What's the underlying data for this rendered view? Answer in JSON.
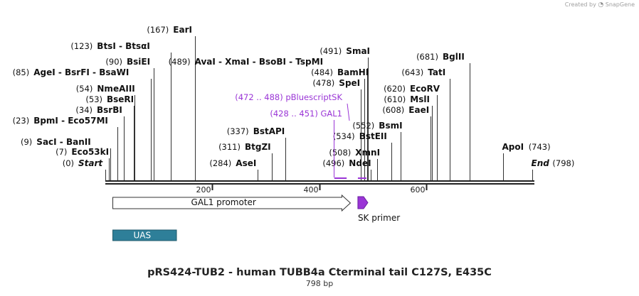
{
  "credit": {
    "prefix": "Created by",
    "brand": "SnapGene",
    "logo_icon": "snapgene-logo-icon"
  },
  "title": "pRS424-TUB2 - human TUBB4a Cterminal tail C127S, E435C",
  "length_label": "798 bp",
  "sequence": {
    "start": 0,
    "end": 798,
    "start_label": "Start",
    "end_label": "End"
  },
  "ruler": {
    "ticks": [
      200,
      400,
      600
    ]
  },
  "colors": {
    "site_line": "#333333",
    "feature": "#9a35d6",
    "uas": "#2e7f99",
    "backbone": "#222222"
  },
  "sites": [
    {
      "pos": 0,
      "pos_label": "(0)",
      "names": [
        "Start"
      ],
      "italic": true
    },
    {
      "pos": 7,
      "pos_label": "(7)",
      "names": [
        "Eco53kI"
      ]
    },
    {
      "pos": 9,
      "pos_label": "(9)",
      "names": [
        "SacI",
        "BanII"
      ]
    },
    {
      "pos": 23,
      "pos_label": "(23)",
      "names": [
        "BpmI",
        "Eco57MI"
      ]
    },
    {
      "pos": 34,
      "pos_label": "(34)",
      "names": [
        "BsrBI"
      ]
    },
    {
      "pos": 53,
      "pos_label": "(53)",
      "names": [
        "BseRI"
      ]
    },
    {
      "pos": 54,
      "pos_label": "(54)",
      "names": [
        "NmeAIII"
      ]
    },
    {
      "pos": 85,
      "pos_label": "(85)",
      "names": [
        "AgeI",
        "BsrFI",
        "BsaWI"
      ]
    },
    {
      "pos": 90,
      "pos_label": "(90)",
      "names": [
        "BsiEI"
      ]
    },
    {
      "pos": 123,
      "pos_label": "(123)",
      "names": [
        "BtsI",
        "BtsαI"
      ]
    },
    {
      "pos": 167,
      "pos_label": "(167)",
      "names": [
        "EarI"
      ]
    },
    {
      "pos": 284,
      "pos_label": "(284)",
      "names": [
        "AseI"
      ]
    },
    {
      "pos": 311,
      "pos_label": "(311)",
      "names": [
        "BtgZI"
      ]
    },
    {
      "pos": 337,
      "pos_label": "(337)",
      "names": [
        "BstAPI"
      ]
    },
    {
      "pos": 489,
      "pos_label": "(489)",
      "names": [
        "AvaI",
        "XmaI",
        "BsoBI",
        "TspMI"
      ]
    },
    {
      "pos": 491,
      "pos_label": "(491)",
      "names": [
        "SmaI"
      ]
    },
    {
      "pos": 484,
      "pos_label": "(484)",
      "names": [
        "BamHI"
      ]
    },
    {
      "pos": 478,
      "pos_label": "(478)",
      "names": [
        "SpeI"
      ]
    },
    {
      "pos": 496,
      "pos_label": "(496)",
      "names": [
        "NdeI"
      ]
    },
    {
      "pos": 508,
      "pos_label": "(508)",
      "names": [
        "XmnI"
      ]
    },
    {
      "pos": 534,
      "pos_label": "(534)",
      "names": [
        "BstEII"
      ]
    },
    {
      "pos": 552,
      "pos_label": "(552)",
      "names": [
        "BsmI"
      ]
    },
    {
      "pos": 608,
      "pos_label": "(608)",
      "names": [
        "EaeI"
      ]
    },
    {
      "pos": 610,
      "pos_label": "(610)",
      "names": [
        "MslI"
      ]
    },
    {
      "pos": 620,
      "pos_label": "(620)",
      "names": [
        "EcoRV"
      ]
    },
    {
      "pos": 643,
      "pos_label": "(643)",
      "names": [
        "TatI"
      ]
    },
    {
      "pos": 681,
      "pos_label": "(681)",
      "names": [
        "BglII"
      ]
    },
    {
      "pos": 743,
      "pos_label": "(743)",
      "names": [
        "ApoI"
      ],
      "pos_right": true
    },
    {
      "pos": 798,
      "pos_label": "(798)",
      "names": [
        "End"
      ],
      "italic": true,
      "pos_right": true
    }
  ],
  "purple_features": [
    {
      "range_label": "(472 .. 488)",
      "name": "pBluescriptSK",
      "start": 472,
      "end": 488
    },
    {
      "range_label": "(428 .. 451)",
      "name": "GAL1",
      "start": 428,
      "end": 451
    }
  ],
  "annotations": [
    {
      "name": "GAL1 promoter",
      "start": 14,
      "end": 458,
      "type": "promoter-arrow"
    },
    {
      "name": "SK primer",
      "start": 472,
      "end": 488,
      "type": "primer"
    },
    {
      "name": "UAS",
      "start": 14,
      "end": 133,
      "type": "box"
    }
  ]
}
